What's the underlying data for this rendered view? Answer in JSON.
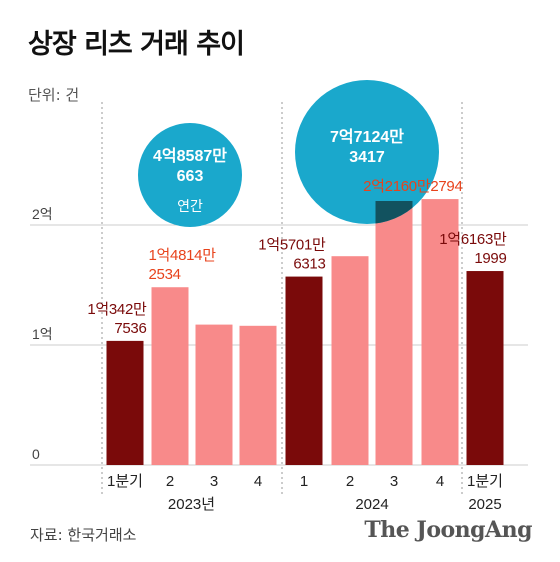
{
  "title": "상장 리츠 거래 추이",
  "unit_label": "단위: 건",
  "source": "자료: 한국거래소",
  "brand": "The JoongAng",
  "colors": {
    "annual_bar": "#7a0a0a",
    "quarter_bar": "#f88a8a",
    "annual_label": "#7a0a0a",
    "quarter_label": "#e8431c",
    "bubble": "#1aa8cc",
    "bubble_overlap": "#12525f",
    "grid": "#cccccc",
    "axis_text": "#444444"
  },
  "chart_data": {
    "type": "bar",
    "title": "상장 리츠 거래 추이",
    "unit": "건",
    "ylim": [
      0,
      230000000
    ],
    "yticks": [
      {
        "value": 0,
        "label": "0"
      },
      {
        "value": 100000000,
        "label": "1억"
      },
      {
        "value": 200000000,
        "label": "2억"
      }
    ],
    "grid": true,
    "groups": [
      {
        "label": "2023년",
        "start": 0,
        "end": 3
      },
      {
        "label": "2024",
        "start": 4,
        "end": 7
      },
      {
        "label": "2025",
        "start": 8,
        "end": 8
      }
    ],
    "bars": [
      {
        "category": "1분기",
        "value": 103427536,
        "kind": "annual",
        "label": [
          "1억342만",
          "7536"
        ]
      },
      {
        "category": "2",
        "value": 148142534,
        "kind": "quarter",
        "label": [
          "1억4814만",
          "2534"
        ]
      },
      {
        "category": "3",
        "value": 117000000,
        "kind": "quarter",
        "label": null
      },
      {
        "category": "4",
        "value": 116000000,
        "kind": "quarter",
        "label": null
      },
      {
        "category": "1",
        "value": 157016313,
        "kind": "annual",
        "label": [
          "1억5701만",
          "6313"
        ]
      },
      {
        "category": "2",
        "value": 174000000,
        "kind": "quarter",
        "label": null
      },
      {
        "category": "3",
        "value": 220000000,
        "kind": "quarter",
        "label": null
      },
      {
        "category": "4",
        "value": 221602794,
        "kind": "quarter",
        "label": [
          "2억2160만2794"
        ]
      },
      {
        "category": "1분기",
        "value": 161631999,
        "kind": "annual",
        "label": [
          "1억6163만",
          "1999"
        ]
      }
    ],
    "annual_totals": [
      {
        "group": "2023년",
        "lines": [
          "4억8587만",
          "663"
        ],
        "caption": "연간"
      },
      {
        "group": "2024",
        "lines": [
          "7억7124만",
          "3417"
        ],
        "caption": ""
      }
    ]
  }
}
